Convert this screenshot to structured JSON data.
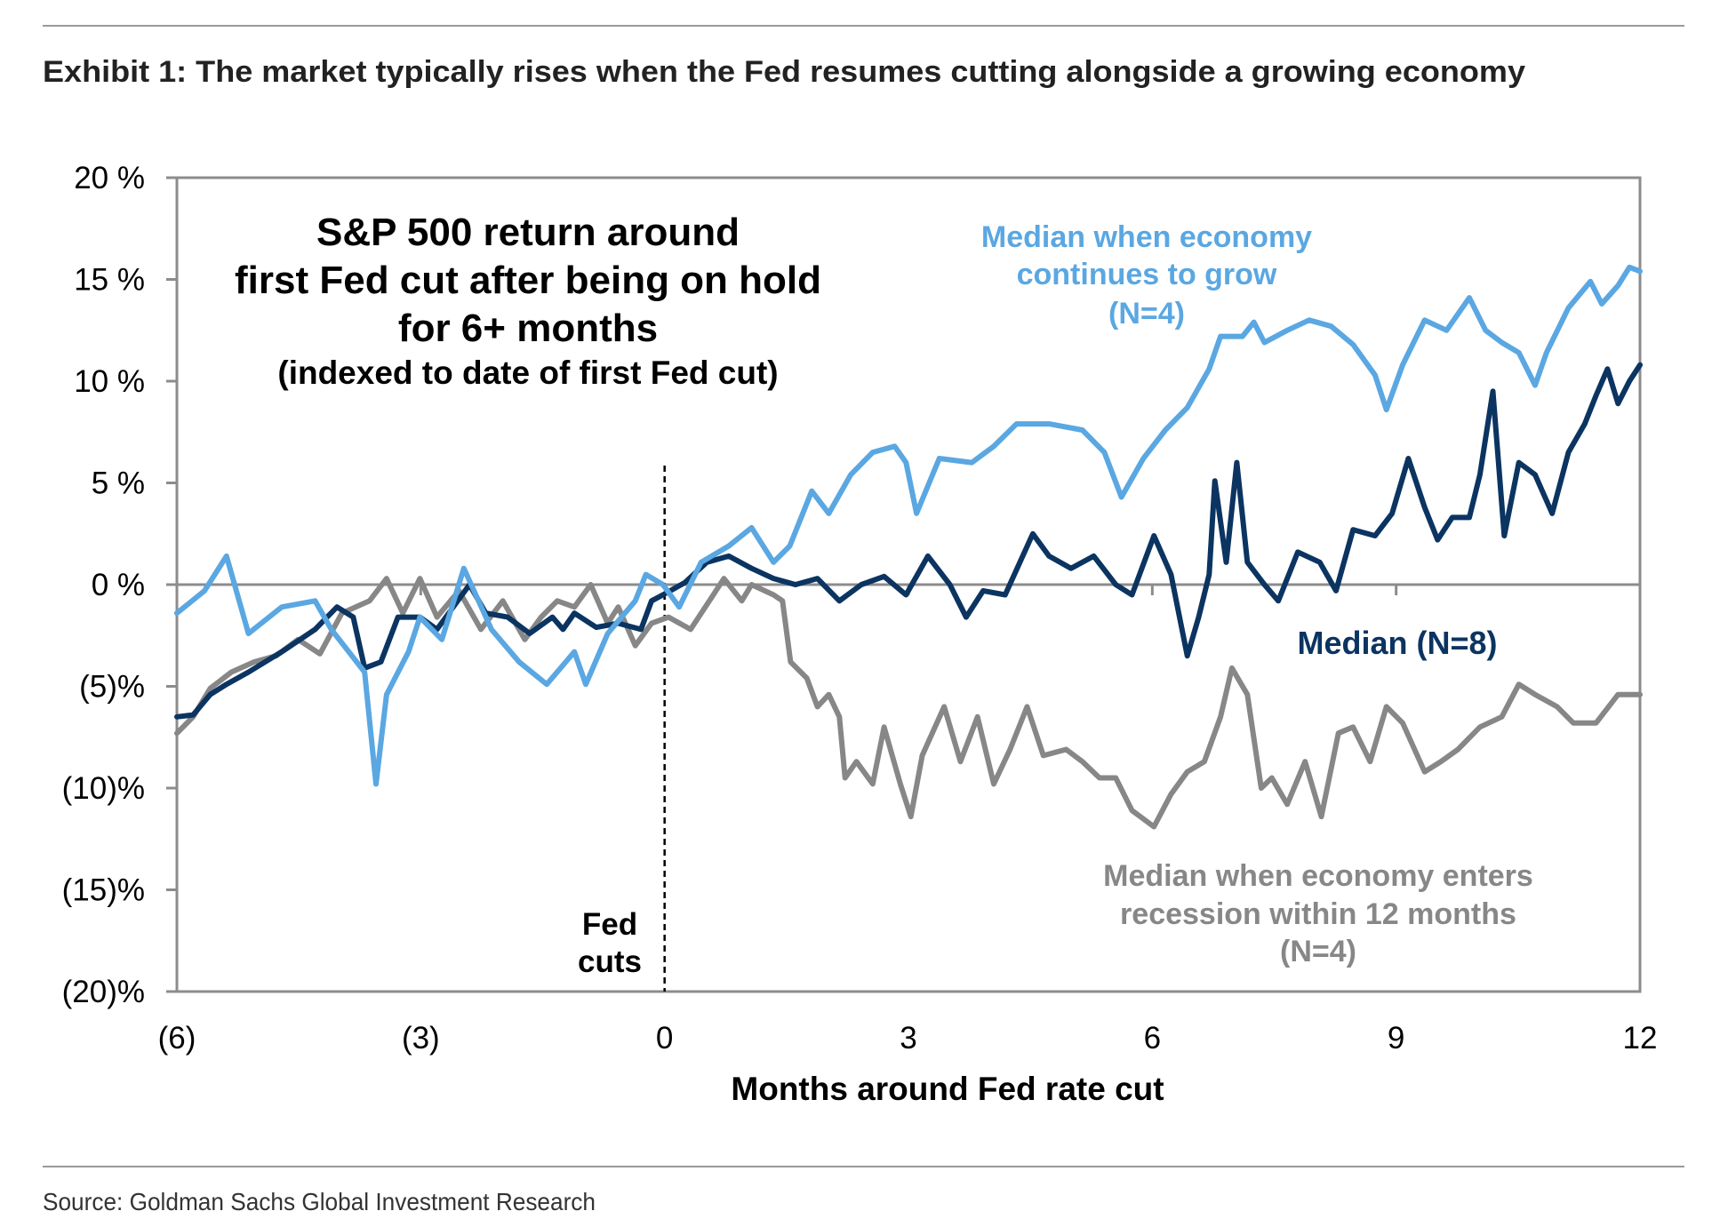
{
  "exhibit_title": "Exhibit 1: The market typically rises when the Fed resumes cutting alongside a growing economy",
  "source": "Source: Goldman Sachs Global Investment Research",
  "colors": {
    "grow": "#5AA7E2",
    "median": "#0B3461",
    "recession": "#878787",
    "axis": "#8C8C8C"
  },
  "chart_data": {
    "type": "line",
    "title_lines": [
      "S&P 500 return around",
      "first Fed cut after being on hold",
      "for 6+ months"
    ],
    "subtitle": "(indexed to date of first Fed cut)",
    "xlabel": "Months around Fed rate cut",
    "ylabel": "",
    "xlim": [
      -6,
      12
    ],
    "ylim": [
      -20,
      20
    ],
    "x_ticks": [
      {
        "v": -6,
        "label": "(6)"
      },
      {
        "v": -3,
        "label": "(3)"
      },
      {
        "v": 0,
        "label": "0"
      },
      {
        "v": 3,
        "label": "3"
      },
      {
        "v": 6,
        "label": "6"
      },
      {
        "v": 9,
        "label": "9"
      },
      {
        "v": 12,
        "label": "12"
      }
    ],
    "y_ticks": [
      {
        "v": 20,
        "label": "20 %"
      },
      {
        "v": 15,
        "label": "15 %"
      },
      {
        "v": 10,
        "label": "10 %"
      },
      {
        "v": 5,
        "label": "5 %"
      },
      {
        "v": 0,
        "label": "0 %"
      },
      {
        "v": -5,
        "label": "(5)%"
      },
      {
        "v": -10,
        "label": "(10)%"
      },
      {
        "v": -15,
        "label": "(15)%"
      },
      {
        "v": -20,
        "label": "(20)%"
      }
    ],
    "annotation": {
      "fed_cut_x": 0,
      "label_lines": [
        "Fed",
        "cuts"
      ]
    },
    "series": [
      {
        "name": "Median when economy continues to grow (N=4)",
        "label_lines": [
          "Median when economy",
          "continues to grow",
          "(N=4)"
        ],
        "color_key": "grow",
        "points": [
          [
            -6,
            -1.4
          ],
          [
            -5.66,
            -0.3
          ],
          [
            -5.39,
            1.4
          ],
          [
            -5.12,
            -2.4
          ],
          [
            -4.71,
            -1.1
          ],
          [
            -4.3,
            -0.8
          ],
          [
            -4.1,
            -2.2
          ],
          [
            -3.69,
            -4.3
          ],
          [
            -3.55,
            -9.8
          ],
          [
            -3.42,
            -5.4
          ],
          [
            -3.15,
            -3.3
          ],
          [
            -3.01,
            -1.6
          ],
          [
            -2.74,
            -2.7
          ],
          [
            -2.47,
            0.8
          ],
          [
            -2.13,
            -2.2
          ],
          [
            -1.79,
            -3.8
          ],
          [
            -1.45,
            -4.9
          ],
          [
            -1.11,
            -3.3
          ],
          [
            -0.97,
            -4.9
          ],
          [
            -0.7,
            -2.4
          ],
          [
            -0.36,
            -0.8
          ],
          [
            -0.23,
            0.5
          ],
          [
            -0.02,
            0
          ],
          [
            0.18,
            -1.1
          ],
          [
            0.45,
            1.1
          ],
          [
            0.79,
            1.9
          ],
          [
            1.07,
            2.8
          ],
          [
            1.34,
            1.1
          ],
          [
            1.54,
            1.9
          ],
          [
            1.81,
            4.6
          ],
          [
            2.02,
            3.5
          ],
          [
            2.29,
            5.4
          ],
          [
            2.56,
            6.5
          ],
          [
            2.83,
            6.8
          ],
          [
            2.97,
            6.0
          ],
          [
            3.1,
            3.5
          ],
          [
            3.38,
            6.2
          ],
          [
            3.78,
            6.0
          ],
          [
            4.05,
            6.8
          ],
          [
            4.33,
            7.9
          ],
          [
            4.73,
            7.9
          ],
          [
            5.14,
            7.6
          ],
          [
            5.41,
            6.5
          ],
          [
            5.62,
            4.3
          ],
          [
            5.89,
            6.2
          ],
          [
            6.16,
            7.6
          ],
          [
            6.43,
            8.7
          ],
          [
            6.7,
            10.6
          ],
          [
            6.84,
            12.2
          ],
          [
            7.11,
            12.2
          ],
          [
            7.25,
            12.9
          ],
          [
            7.38,
            11.9
          ],
          [
            7.66,
            12.5
          ],
          [
            7.93,
            13.0
          ],
          [
            8.2,
            12.7
          ],
          [
            8.47,
            11.8
          ],
          [
            8.74,
            10.3
          ],
          [
            8.88,
            8.6
          ],
          [
            9.08,
            10.8
          ],
          [
            9.35,
            13.0
          ],
          [
            9.62,
            12.5
          ],
          [
            9.9,
            14.1
          ],
          [
            10.1,
            12.5
          ],
          [
            10.3,
            11.9
          ],
          [
            10.51,
            11.4
          ],
          [
            10.71,
            9.8
          ],
          [
            10.85,
            11.4
          ],
          [
            11.12,
            13.6
          ],
          [
            11.39,
            14.9
          ],
          [
            11.53,
            13.8
          ],
          [
            11.73,
            14.7
          ],
          [
            11.87,
            15.6
          ],
          [
            12,
            15.4
          ]
        ]
      },
      {
        "name": "Median (N=8)",
        "label_lines": [
          "Median (N=8)"
        ],
        "color_key": "median",
        "points": [
          [
            -6,
            -6.5
          ],
          [
            -5.8,
            -6.4
          ],
          [
            -5.59,
            -5.4
          ],
          [
            -5.39,
            -4.9
          ],
          [
            -5.12,
            -4.3
          ],
          [
            -4.71,
            -3.3
          ],
          [
            -4.3,
            -2.2
          ],
          [
            -4.03,
            -1.1
          ],
          [
            -3.83,
            -1.6
          ],
          [
            -3.69,
            -4.1
          ],
          [
            -3.49,
            -3.8
          ],
          [
            -3.28,
            -1.6
          ],
          [
            -3.01,
            -1.6
          ],
          [
            -2.8,
            -2.2
          ],
          [
            -2.4,
            0
          ],
          [
            -2.2,
            -1.4
          ],
          [
            -1.93,
            -1.6
          ],
          [
            -1.66,
            -2.4
          ],
          [
            -1.38,
            -1.6
          ],
          [
            -1.25,
            -2.2
          ],
          [
            -1.11,
            -1.4
          ],
          [
            -0.84,
            -2.1
          ],
          [
            -0.57,
            -1.9
          ],
          [
            -0.29,
            -2.2
          ],
          [
            -0.16,
            -0.8
          ],
          [
            -0.02,
            -0.5
          ],
          [
            0.25,
            0.1
          ],
          [
            0.52,
            1.1
          ],
          [
            0.79,
            1.4
          ],
          [
            1.07,
            0.8
          ],
          [
            1.34,
            0.3
          ],
          [
            1.61,
            0
          ],
          [
            1.88,
            0.3
          ],
          [
            2.15,
            -0.8
          ],
          [
            2.42,
            0
          ],
          [
            2.7,
            0.4
          ],
          [
            2.97,
            -0.5
          ],
          [
            3.24,
            1.4
          ],
          [
            3.51,
            0
          ],
          [
            3.71,
            -1.6
          ],
          [
            3.92,
            -0.3
          ],
          [
            4.19,
            -0.5
          ],
          [
            4.53,
            2.5
          ],
          [
            4.73,
            1.4
          ],
          [
            5.0,
            0.8
          ],
          [
            5.28,
            1.4
          ],
          [
            5.55,
            0
          ],
          [
            5.75,
            -0.5
          ],
          [
            6.02,
            2.4
          ],
          [
            6.23,
            0.5
          ],
          [
            6.43,
            -3.5
          ],
          [
            6.57,
            -1.6
          ],
          [
            6.7,
            0.5
          ],
          [
            6.77,
            5.1
          ],
          [
            6.91,
            1.1
          ],
          [
            7.04,
            6.0
          ],
          [
            7.17,
            1.1
          ],
          [
            7.38,
            0
          ],
          [
            7.55,
            -0.8
          ],
          [
            7.79,
            1.6
          ],
          [
            8.06,
            1.1
          ],
          [
            8.26,
            -0.3
          ],
          [
            8.47,
            2.7
          ],
          [
            8.74,
            2.4
          ],
          [
            8.95,
            3.5
          ],
          [
            9.15,
            6.2
          ],
          [
            9.35,
            3.8
          ],
          [
            9.51,
            2.2
          ],
          [
            9.69,
            3.3
          ],
          [
            9.9,
            3.3
          ],
          [
            10.03,
            5.4
          ],
          [
            10.19,
            9.5
          ],
          [
            10.33,
            2.4
          ],
          [
            10.51,
            6.0
          ],
          [
            10.71,
            5.4
          ],
          [
            10.92,
            3.5
          ],
          [
            11.12,
            6.5
          ],
          [
            11.32,
            7.9
          ],
          [
            11.46,
            9.3
          ],
          [
            11.6,
            10.6
          ],
          [
            11.73,
            8.9
          ],
          [
            11.87,
            10.0
          ],
          [
            12,
            10.8
          ]
        ]
      },
      {
        "name": "Median when economy enters recession within 12 months (N=4)",
        "label_lines": [
          "Median when economy enters",
          "recession within 12 months",
          "(N=4)"
        ],
        "color_key": "recession",
        "points": [
          [
            -6,
            -7.3
          ],
          [
            -5.8,
            -6.5
          ],
          [
            -5.59,
            -5.1
          ],
          [
            -5.33,
            -4.3
          ],
          [
            -5.05,
            -3.8
          ],
          [
            -4.78,
            -3.5
          ],
          [
            -4.51,
            -2.7
          ],
          [
            -4.24,
            -3.4
          ],
          [
            -3.97,
            -1.4
          ],
          [
            -3.63,
            -0.8
          ],
          [
            -3.42,
            0.3
          ],
          [
            -3.22,
            -1.4
          ],
          [
            -3.01,
            0.3
          ],
          [
            -2.8,
            -1.6
          ],
          [
            -2.53,
            -0.3
          ],
          [
            -2.26,
            -2.2
          ],
          [
            -1.99,
            -0.8
          ],
          [
            -1.72,
            -2.7
          ],
          [
            -1.52,
            -1.6
          ],
          [
            -1.32,
            -0.8
          ],
          [
            -1.11,
            -1.1
          ],
          [
            -0.91,
            0
          ],
          [
            -0.7,
            -1.9
          ],
          [
            -0.57,
            -1.1
          ],
          [
            -0.36,
            -3.0
          ],
          [
            -0.16,
            -1.9
          ],
          [
            0.05,
            -1.6
          ],
          [
            0.32,
            -2.2
          ],
          [
            0.6,
            -0.5
          ],
          [
            0.73,
            0.3
          ],
          [
            0.95,
            -0.8
          ],
          [
            1.07,
            0
          ],
          [
            1.34,
            -0.5
          ],
          [
            1.45,
            -0.8
          ],
          [
            1.55,
            -3.8
          ],
          [
            1.75,
            -4.6
          ],
          [
            1.88,
            -6.0
          ],
          [
            2.02,
            -5.4
          ],
          [
            2.15,
            -6.5
          ],
          [
            2.22,
            -9.5
          ],
          [
            2.36,
            -8.7
          ],
          [
            2.56,
            -9.8
          ],
          [
            2.7,
            -7.0
          ],
          [
            2.9,
            -9.8
          ],
          [
            3.03,
            -11.4
          ],
          [
            3.17,
            -8.4
          ],
          [
            3.44,
            -6.0
          ],
          [
            3.64,
            -8.7
          ],
          [
            3.85,
            -6.5
          ],
          [
            4.05,
            -9.8
          ],
          [
            4.25,
            -8.1
          ],
          [
            4.46,
            -6.0
          ],
          [
            4.66,
            -8.4
          ],
          [
            4.94,
            -8.1
          ],
          [
            5.14,
            -8.7
          ],
          [
            5.35,
            -9.5
          ],
          [
            5.55,
            -9.5
          ],
          [
            5.75,
            -11.1
          ],
          [
            6.02,
            -11.9
          ],
          [
            6.23,
            -10.3
          ],
          [
            6.43,
            -9.2
          ],
          [
            6.64,
            -8.7
          ],
          [
            6.84,
            -6.5
          ],
          [
            6.98,
            -4.1
          ],
          [
            7.17,
            -5.4
          ],
          [
            7.34,
            -10.0
          ],
          [
            7.47,
            -9.5
          ],
          [
            7.66,
            -10.8
          ],
          [
            7.88,
            -8.7
          ],
          [
            8.08,
            -11.4
          ],
          [
            8.29,
            -7.3
          ],
          [
            8.47,
            -7.0
          ],
          [
            8.68,
            -8.7
          ],
          [
            8.88,
            -6.0
          ],
          [
            9.08,
            -6.8
          ],
          [
            9.35,
            -9.2
          ],
          [
            9.55,
            -8.7
          ],
          [
            9.76,
            -8.1
          ],
          [
            10.03,
            -7.0
          ],
          [
            10.3,
            -6.5
          ],
          [
            10.51,
            -4.9
          ],
          [
            10.71,
            -5.4
          ],
          [
            10.98,
            -6.0
          ],
          [
            11.18,
            -6.8
          ],
          [
            11.46,
            -6.8
          ],
          [
            11.73,
            -5.4
          ],
          [
            12,
            -5.4
          ]
        ]
      }
    ]
  }
}
